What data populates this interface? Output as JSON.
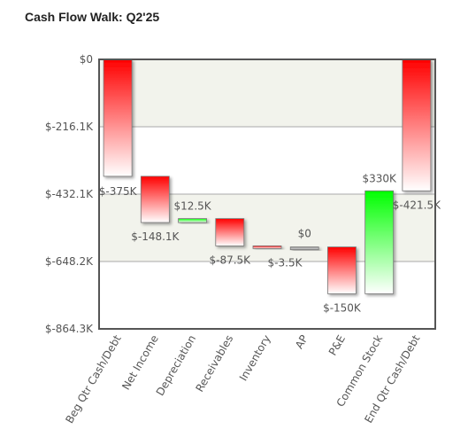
{
  "title": "Cash Flow Walk: Q2'25",
  "chart_data": {
    "type": "waterfall",
    "title": "Cash Flow Walk: Q2'25",
    "xlabel": "",
    "ylabel": "",
    "ylim": [
      -864.3,
      0
    ],
    "yticks": [
      "$0",
      "$-216.1K",
      "$-432.1K",
      "$-648.2K",
      "$-864.3K"
    ],
    "categories": [
      "Beg Qtr Cash/Debt",
      "Net Income",
      "Depreciation",
      "Receivables",
      "Inventory",
      "AP",
      "P&E",
      "Common Stock",
      "End Qtr Cash/Debt"
    ],
    "values": [
      -375,
      -148.1,
      12.5,
      -87.5,
      -3.5,
      0,
      -150,
      330,
      -421.5
    ],
    "kind": [
      "total",
      "delta",
      "delta",
      "delta",
      "delta",
      "delta",
      "delta",
      "delta",
      "total"
    ],
    "labels": [
      "$-375K",
      "$-148.1K",
      "$12.5K",
      "$-87.5K",
      "$-3.5K",
      "$0",
      "$-150K",
      "$330K",
      "$-421.5K"
    ],
    "colors": {
      "negative": "#ff0000",
      "positive": "#00ff00",
      "zero": "#999999"
    },
    "grid": true,
    "legend": "none"
  }
}
